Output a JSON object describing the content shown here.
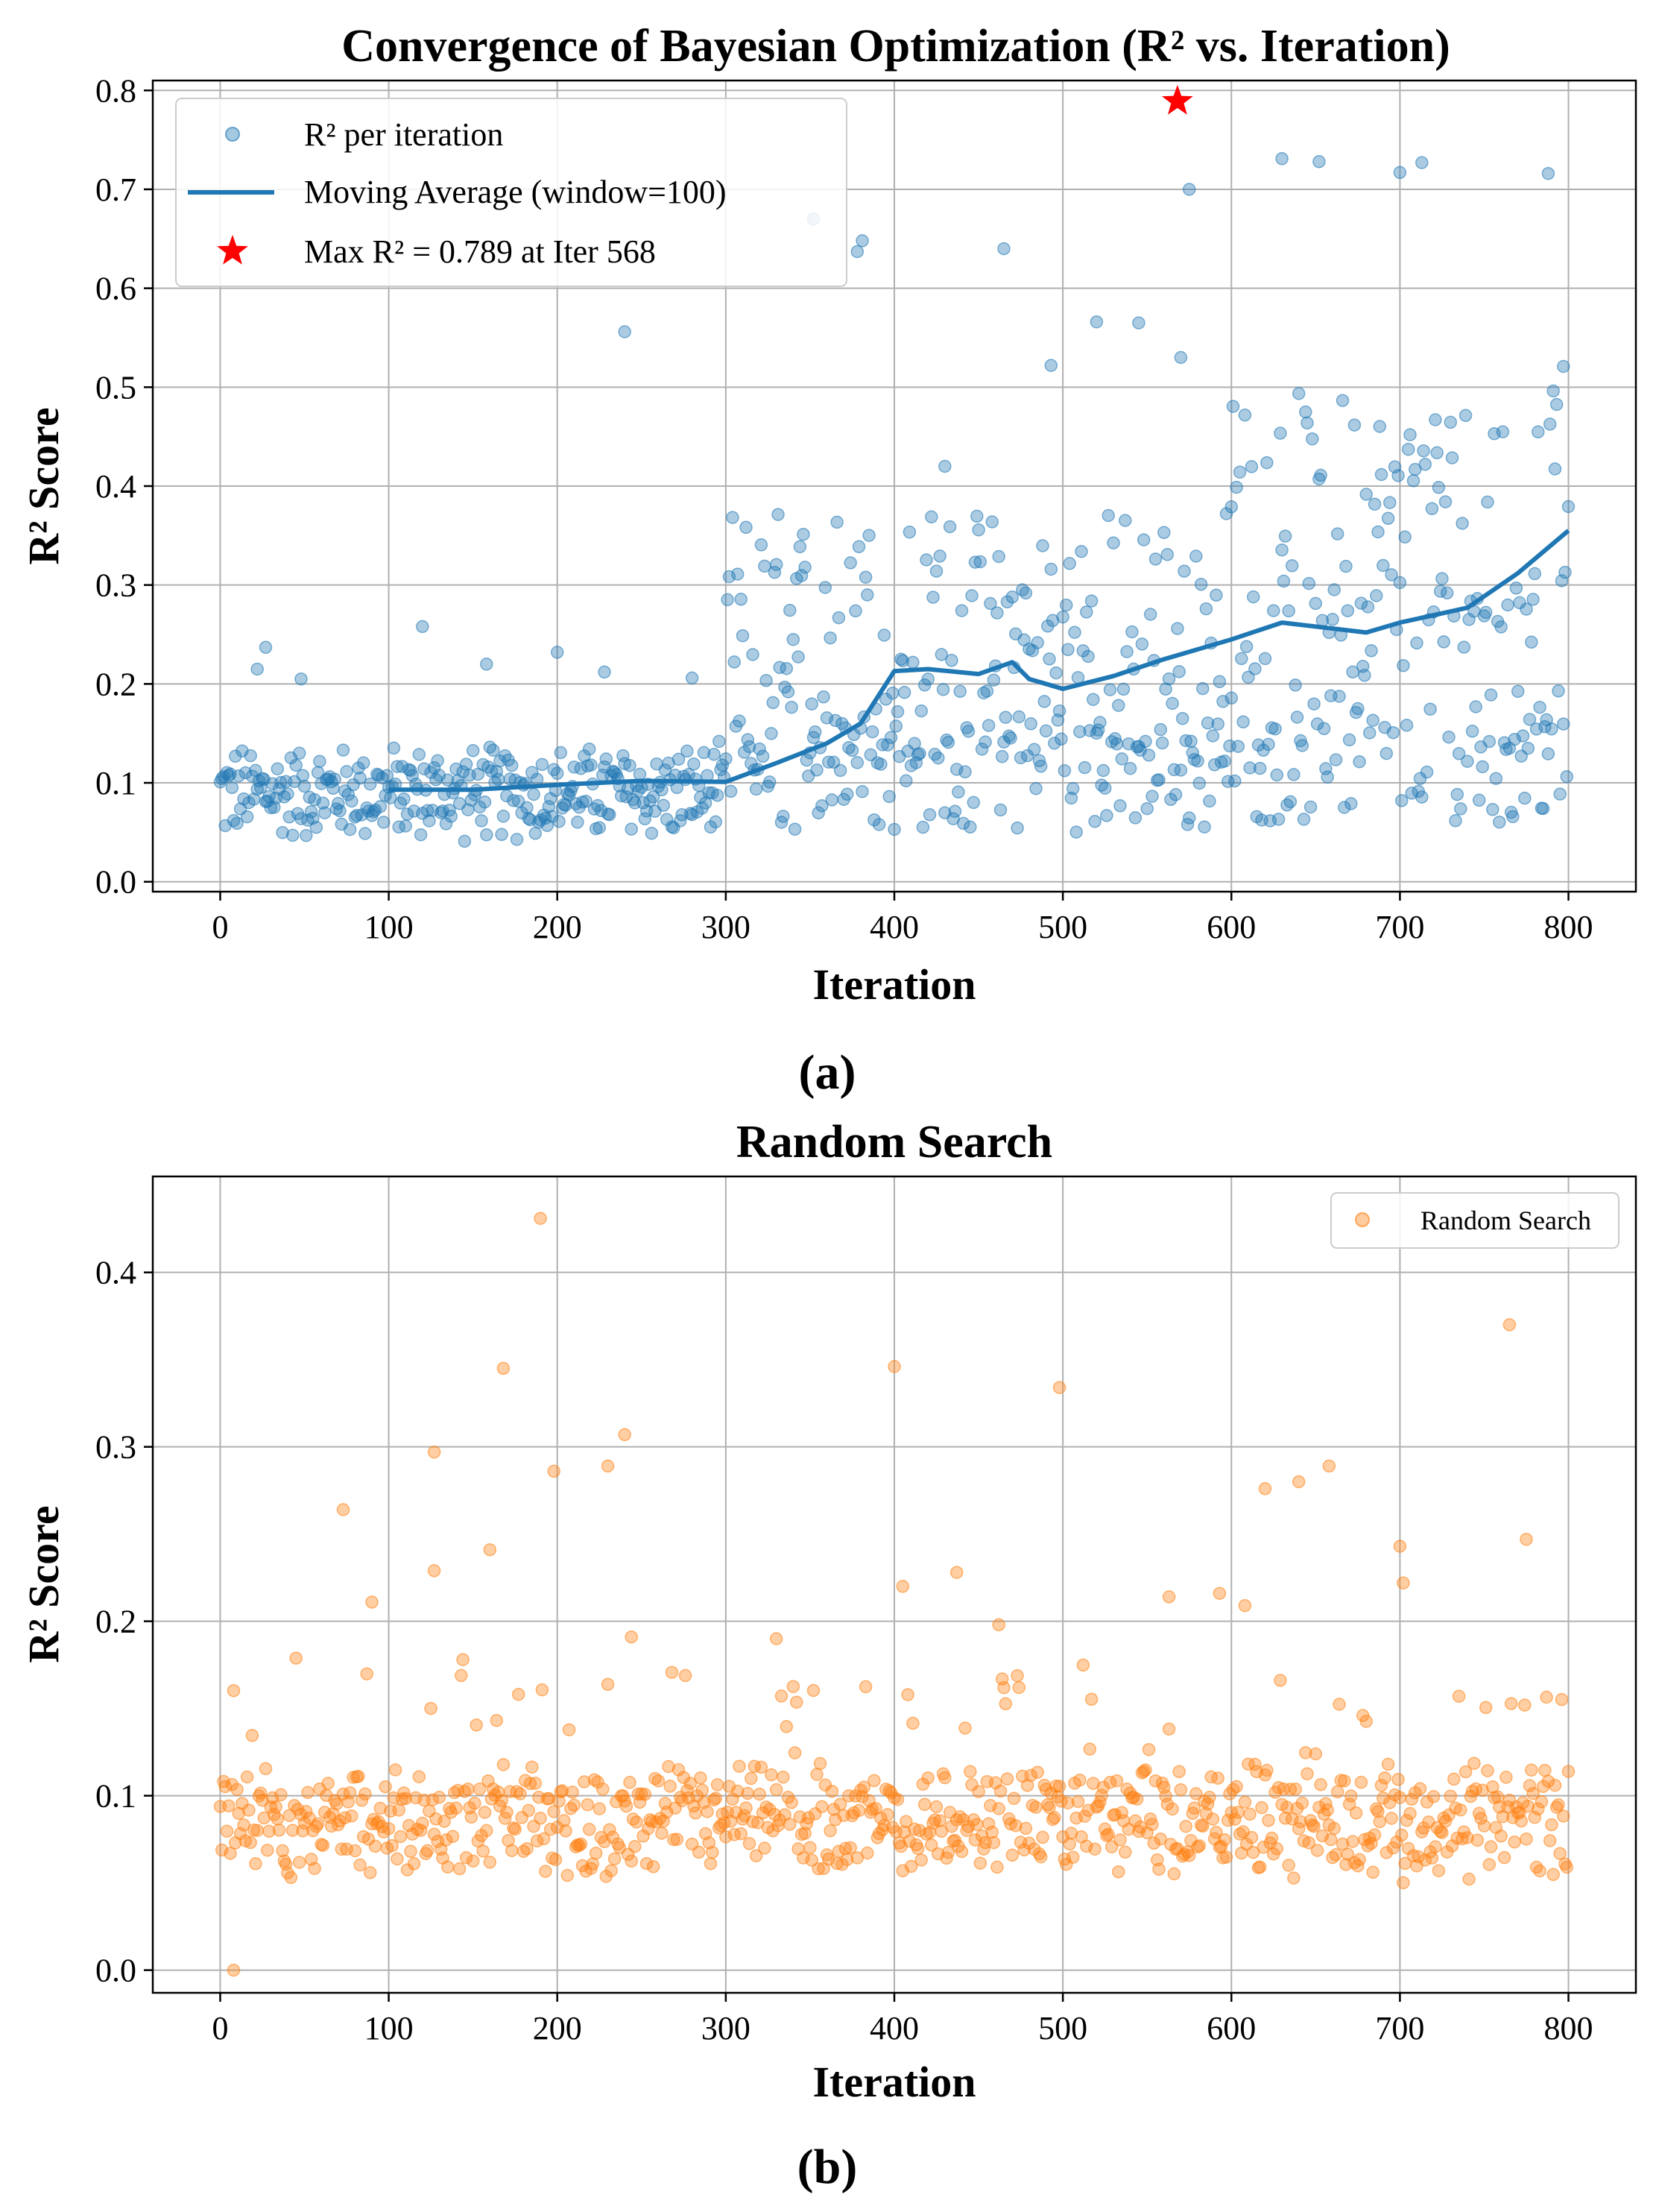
{
  "colors": {
    "bo_points": "#1f77b4",
    "bo_line": "#1f77b4",
    "max_star": "#ff0000",
    "rs_points": "#ff7f0e",
    "grid": "#b0b0b0"
  },
  "chart_data": [
    {
      "type": "scatter",
      "panel_caption": "(a)",
      "title": "Convergence of Bayesian Optimization (R² vs. Iteration)",
      "xlabel": "Iteration",
      "ylabel": "R² Score",
      "xlim": [
        -40,
        840
      ],
      "ylim": [
        -0.01,
        0.81
      ],
      "xticks": [
        0,
        100,
        200,
        300,
        400,
        500,
        600,
        700,
        800
      ],
      "yticks": [
        "0.0",
        "0.1",
        "0.2",
        "0.3",
        "0.4",
        "0.5",
        "0.6",
        "0.7",
        "0.8"
      ],
      "grid": true,
      "legend_position": "top-left",
      "legend": {
        "points": "R² per iteration",
        "line": "Moving Average (window=100)",
        "max": "Max R² = 0.789 at Iter 568"
      },
      "max_point": {
        "x": 568,
        "y": 0.789
      },
      "moving_average": {
        "window": 100,
        "x": [
          100,
          150,
          200,
          250,
          300,
          330,
          360,
          380,
          400,
          420,
          450,
          470,
          480,
          500,
          530,
          560,
          600,
          630,
          680,
          700,
          740,
          770,
          800
        ],
        "y": [
          0.093,
          0.093,
          0.098,
          0.102,
          0.101,
          0.12,
          0.14,
          0.16,
          0.213,
          0.215,
          0.21,
          0.222,
          0.205,
          0.195,
          0.208,
          0.225,
          0.245,
          0.262,
          0.252,
          0.262,
          0.277,
          0.312,
          0.355
        ]
      },
      "series_ranges": [
        {
          "x": [
            0,
            300
          ],
          "base": 0.09,
          "spread": 0.045,
          "outliers": [
            [
              22,
              0.215
            ],
            [
              27,
              0.237
            ],
            [
              48,
              0.205
            ],
            [
              120,
              0.258
            ],
            [
              158,
              0.22
            ],
            [
              200,
              0.232
            ],
            [
              228,
              0.212
            ],
            [
              240,
              0.556
            ],
            [
              280,
              0.206
            ]
          ]
        },
        {
          "x": [
            300,
            600
          ],
          "base": 0.17,
          "spread": 0.16,
          "outliers": [
            [
              352,
              0.67
            ],
            [
              378,
              0.637
            ],
            [
              381,
              0.648
            ],
            [
              430,
              0.42
            ],
            [
              465,
              0.64
            ],
            [
              493,
              0.522
            ],
            [
              520,
              0.566
            ],
            [
              545,
              0.565
            ],
            [
              570,
              0.53
            ],
            [
              575,
              0.7
            ]
          ]
        },
        {
          "x": [
            600,
            800
          ],
          "base": 0.3,
          "spread": 0.3,
          "outliers": [
            [
              630,
              0.731
            ],
            [
              652,
              0.728
            ],
            [
              700,
              0.717
            ],
            [
              713,
              0.727
            ],
            [
              788,
              0.716
            ],
            [
              797,
              0.521
            ]
          ]
        }
      ]
    },
    {
      "type": "scatter",
      "panel_caption": "(b)",
      "title": "Random Search",
      "xlabel": "Iteration",
      "ylabel": "R² Score",
      "xlim": [
        -40,
        840
      ],
      "ylim": [
        -0.013,
        0.455
      ],
      "xticks": [
        0,
        100,
        200,
        300,
        400,
        500,
        600,
        700,
        800
      ],
      "yticks": [
        "0.0",
        "0.1",
        "0.2",
        "0.3",
        "0.4"
      ],
      "grid": true,
      "legend_position": "top-right",
      "legend": {
        "points": "Random Search"
      },
      "series_ranges": [
        {
          "x": [
            0,
            800
          ],
          "base": 0.085,
          "spread": 0.03,
          "outliers": [
            [
              190,
              0.431
            ],
            [
              168,
              0.345
            ],
            [
              400,
              0.346
            ],
            [
              765,
              0.37
            ],
            [
              498,
              0.334
            ],
            [
              240,
              0.307
            ],
            [
              127,
              0.297
            ],
            [
              230,
              0.289
            ],
            [
              198,
              0.286
            ],
            [
              658,
              0.289
            ],
            [
              73,
              0.264
            ],
            [
              640,
              0.28
            ],
            [
              620,
              0.276
            ],
            [
              160,
              0.241
            ],
            [
              127,
              0.229
            ],
            [
              775,
              0.247
            ],
            [
              700,
              0.243
            ],
            [
              702,
              0.222
            ],
            [
              405,
              0.22
            ],
            [
              437,
              0.228
            ],
            [
              593,
              0.216
            ],
            [
              563,
              0.214
            ],
            [
              608,
              0.209
            ],
            [
              90,
              0.211
            ],
            [
              462,
              0.198
            ],
            [
              244,
              0.191
            ],
            [
              330,
              0.19
            ],
            [
              8,
              0.0
            ]
          ]
        }
      ]
    }
  ]
}
